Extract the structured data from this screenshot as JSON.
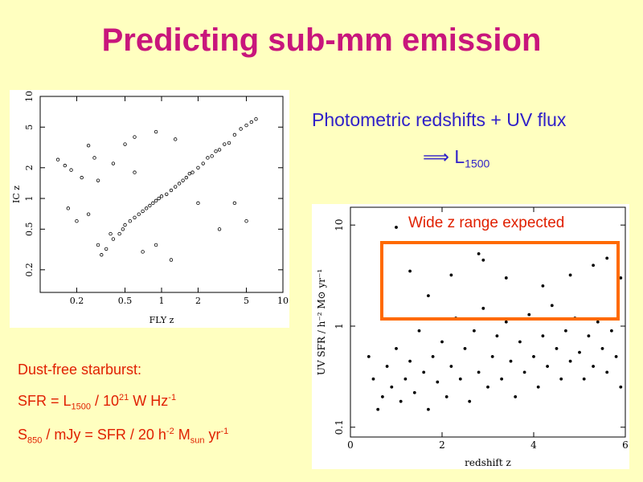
{
  "title": "Predicting sub-mm emission",
  "right_text": {
    "line1": "Photometric redshifts + UV flux",
    "arrow": "⟹",
    "L": "L",
    "L_sub": "1500"
  },
  "annotation": "Wide z range expected",
  "bottom_left": {
    "heading": "Dust-free starburst:",
    "eq1": {
      "a": "SFR = L",
      "sub1": "1500",
      "b": " / 10",
      "sup1": "21",
      "c": " W Hz",
      "sup2": "-1"
    },
    "eq2": {
      "a": "S",
      "sub1": "850",
      "b": " / mJy = SFR / 20 h",
      "sup1": "-2",
      "c": " M",
      "sub2": "sun",
      "d": " yr",
      "sup2": "-1"
    }
  },
  "chart_data": [
    {
      "type": "scatter",
      "xlabel": "FLY z",
      "ylabel": "IC z",
      "xscale": "log",
      "yscale": "log",
      "xlim": [
        0.1,
        10
      ],
      "ylim": [
        0.12,
        10
      ],
      "xticks": [
        "0.2",
        "0.5",
        "1",
        "2",
        "5",
        "10"
      ],
      "yticks": [
        "0.2",
        "0.5",
        "1",
        "2",
        "5",
        "10"
      ],
      "points": [
        [
          0.14,
          2.4
        ],
        [
          0.16,
          2.1
        ],
        [
          0.17,
          0.8
        ],
        [
          0.18,
          1.9
        ],
        [
          0.2,
          0.6
        ],
        [
          0.22,
          1.6
        ],
        [
          0.25,
          3.3
        ],
        [
          0.28,
          2.5
        ],
        [
          0.3,
          0.35
        ],
        [
          0.32,
          0.28
        ],
        [
          0.35,
          0.32
        ],
        [
          0.38,
          0.45
        ],
        [
          0.4,
          0.4
        ],
        [
          0.45,
          0.45
        ],
        [
          0.48,
          0.5
        ],
        [
          0.5,
          0.55
        ],
        [
          0.55,
          0.6
        ],
        [
          0.6,
          0.65
        ],
        [
          0.65,
          0.7
        ],
        [
          0.7,
          0.75
        ],
        [
          0.75,
          0.8
        ],
        [
          0.8,
          0.85
        ],
        [
          0.85,
          0.9
        ],
        [
          0.9,
          0.95
        ],
        [
          0.95,
          1.0
        ],
        [
          1.0,
          1.05
        ],
        [
          1.1,
          1.1
        ],
        [
          1.2,
          1.2
        ],
        [
          1.3,
          1.3
        ],
        [
          1.4,
          1.4
        ],
        [
          1.5,
          1.5
        ],
        [
          1.6,
          1.6
        ],
        [
          1.7,
          1.75
        ],
        [
          1.8,
          1.8
        ],
        [
          2.0,
          2.0
        ],
        [
          2.2,
          2.2
        ],
        [
          2.4,
          2.5
        ],
        [
          2.6,
          2.6
        ],
        [
          2.8,
          2.9
        ],
        [
          3.0,
          3.0
        ],
        [
          3.3,
          3.4
        ],
        [
          3.6,
          3.5
        ],
        [
          4.0,
          4.2
        ],
        [
          4.5,
          4.8
        ],
        [
          5.0,
          5.2
        ],
        [
          5.5,
          5.6
        ],
        [
          6.0,
          6.0
        ],
        [
          0.4,
          2.2
        ],
        [
          0.5,
          3.4
        ],
        [
          0.6,
          1.8
        ],
        [
          0.7,
          0.3
        ],
        [
          0.9,
          0.35
        ],
        [
          1.2,
          0.25
        ],
        [
          2.0,
          0.9
        ],
        [
          3.0,
          0.5
        ],
        [
          4.0,
          0.9
        ],
        [
          5.0,
          0.6
        ],
        [
          0.3,
          1.5
        ],
        [
          0.25,
          0.7
        ],
        [
          0.9,
          4.5
        ],
        [
          1.3,
          3.8
        ],
        [
          0.6,
          4.0
        ]
      ]
    },
    {
      "type": "scatter",
      "xlabel": "redshift z",
      "ylabel": "UV SFR / h⁻² M⊙ yr⁻¹",
      "xscale": "linear",
      "yscale": "log",
      "xlim": [
        0,
        6
      ],
      "ylim": [
        0.08,
        15
      ],
      "xticks": [
        "0",
        "2",
        "4",
        "6"
      ],
      "yticks": [
        "0.1",
        "1",
        "10"
      ],
      "points": [
        [
          1.0,
          9.5
        ],
        [
          1.3,
          3.5
        ],
        [
          1.7,
          2.0
        ],
        [
          2.2,
          3.2
        ],
        [
          2.8,
          5.2
        ],
        [
          2.9,
          4.5
        ],
        [
          3.4,
          3.0
        ],
        [
          4.2,
          2.5
        ],
        [
          4.8,
          3.2
        ],
        [
          5.3,
          4.0
        ],
        [
          5.6,
          4.7
        ],
        [
          5.9,
          3.0
        ],
        [
          0.4,
          0.5
        ],
        [
          0.5,
          0.3
        ],
        [
          0.6,
          0.15
        ],
        [
          0.7,
          0.2
        ],
        [
          0.8,
          0.4
        ],
        [
          0.9,
          0.25
        ],
        [
          1.0,
          0.6
        ],
        [
          1.1,
          0.18
        ],
        [
          1.2,
          0.3
        ],
        [
          1.3,
          0.45
        ],
        [
          1.4,
          0.22
        ],
        [
          1.5,
          0.9
        ],
        [
          1.6,
          0.35
        ],
        [
          1.7,
          0.15
        ],
        [
          1.8,
          0.5
        ],
        [
          1.9,
          0.28
        ],
        [
          2.0,
          0.7
        ],
        [
          2.1,
          0.2
        ],
        [
          2.2,
          0.4
        ],
        [
          2.3,
          1.2
        ],
        [
          2.4,
          0.3
        ],
        [
          2.5,
          0.6
        ],
        [
          2.6,
          0.18
        ],
        [
          2.7,
          0.9
        ],
        [
          2.8,
          0.35
        ],
        [
          2.9,
          1.5
        ],
        [
          3.0,
          0.25
        ],
        [
          3.1,
          0.5
        ],
        [
          3.2,
          0.8
        ],
        [
          3.3,
          0.3
        ],
        [
          3.4,
          1.1
        ],
        [
          3.5,
          0.45
        ],
        [
          3.6,
          0.2
        ],
        [
          3.7,
          0.7
        ],
        [
          3.8,
          0.35
        ],
        [
          3.9,
          1.3
        ],
        [
          4.0,
          0.5
        ],
        [
          4.1,
          0.25
        ],
        [
          4.2,
          0.8
        ],
        [
          4.3,
          0.4
        ],
        [
          4.4,
          1.6
        ],
        [
          4.5,
          0.6
        ],
        [
          4.6,
          0.3
        ],
        [
          4.7,
          0.9
        ],
        [
          4.8,
          0.45
        ],
        [
          4.9,
          1.2
        ],
        [
          5.0,
          0.55
        ],
        [
          5.1,
          0.3
        ],
        [
          5.2,
          0.8
        ],
        [
          5.3,
          0.4
        ],
        [
          5.4,
          1.1
        ],
        [
          5.5,
          0.6
        ],
        [
          5.6,
          0.35
        ],
        [
          5.7,
          0.9
        ],
        [
          5.8,
          0.5
        ],
        [
          5.9,
          0.25
        ]
      ]
    }
  ],
  "colors": {
    "title": "#c8167c",
    "blue": "#3020c8",
    "red": "#e02000",
    "box": "#ff6a00",
    "bg": "#ffffc0"
  }
}
